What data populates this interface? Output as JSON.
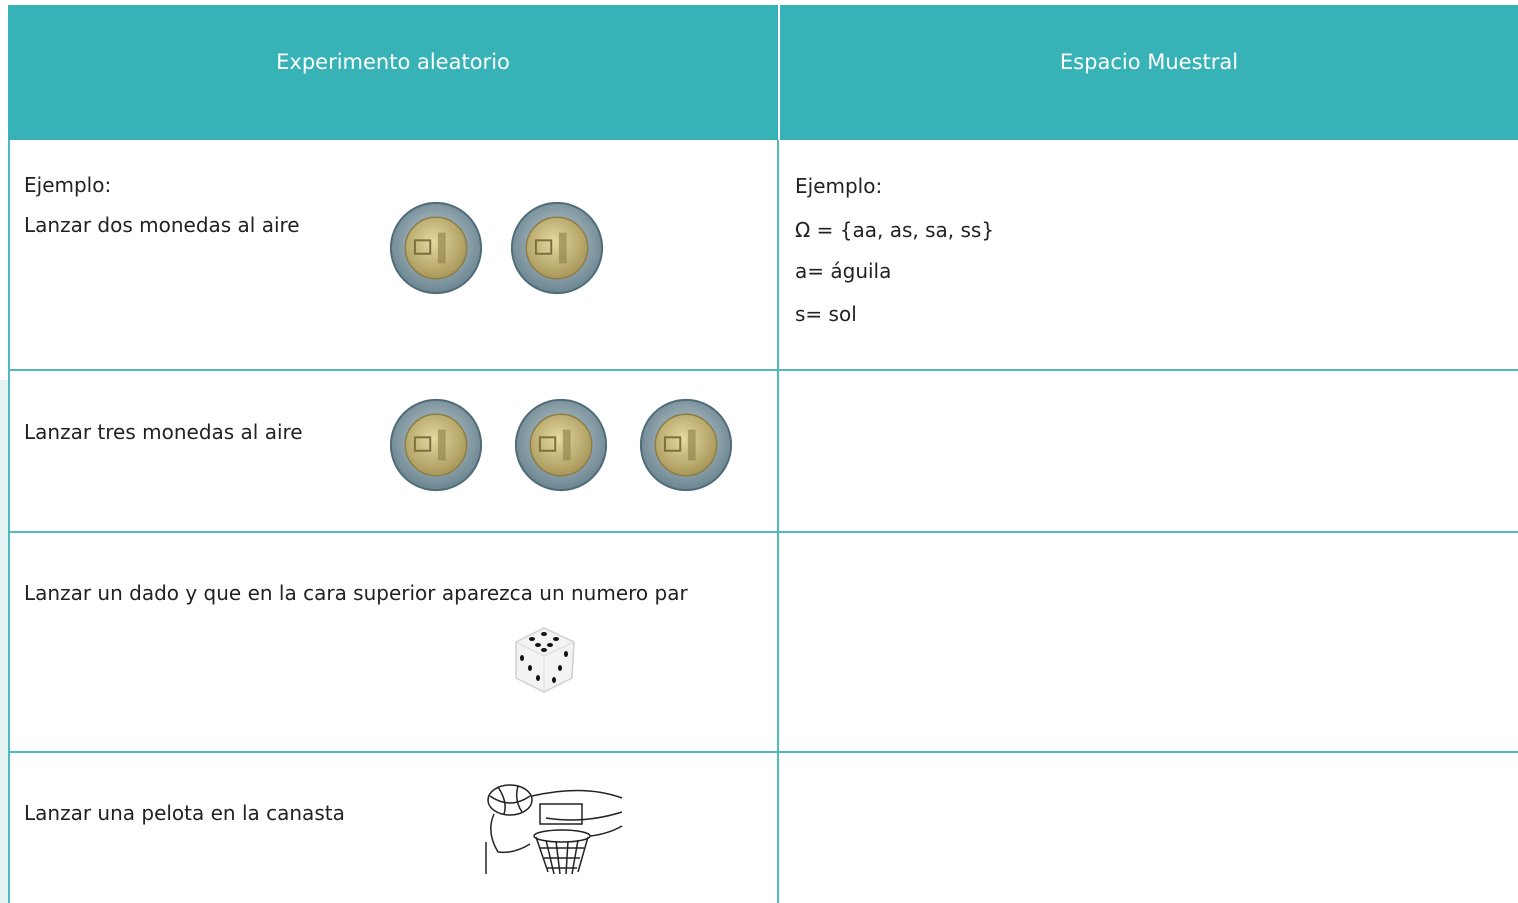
{
  "table": {
    "header": [
      "Experimento aleatorio",
      "Espacio Muestral"
    ],
    "rows": [
      {
        "experiment": [
          "Ejemplo:",
          "Lanzar dos monedas al aire"
        ],
        "sample_space": [
          "Ejemplo:",
          "Ω = {aa, as, sa, ss}",
          "a= águila",
          "s= sol"
        ]
      },
      {
        "experiment": [
          "Lanzar tres monedas al aire"
        ],
        "sample_space": []
      },
      {
        "experiment": [
          "Lanzar un dado y que en la cara superior  aparezca un numero par"
        ],
        "sample_space": []
      },
      {
        "experiment": [
          "Lanzar una pelota en la canasta"
        ],
        "sample_space": []
      }
    ]
  }
}
